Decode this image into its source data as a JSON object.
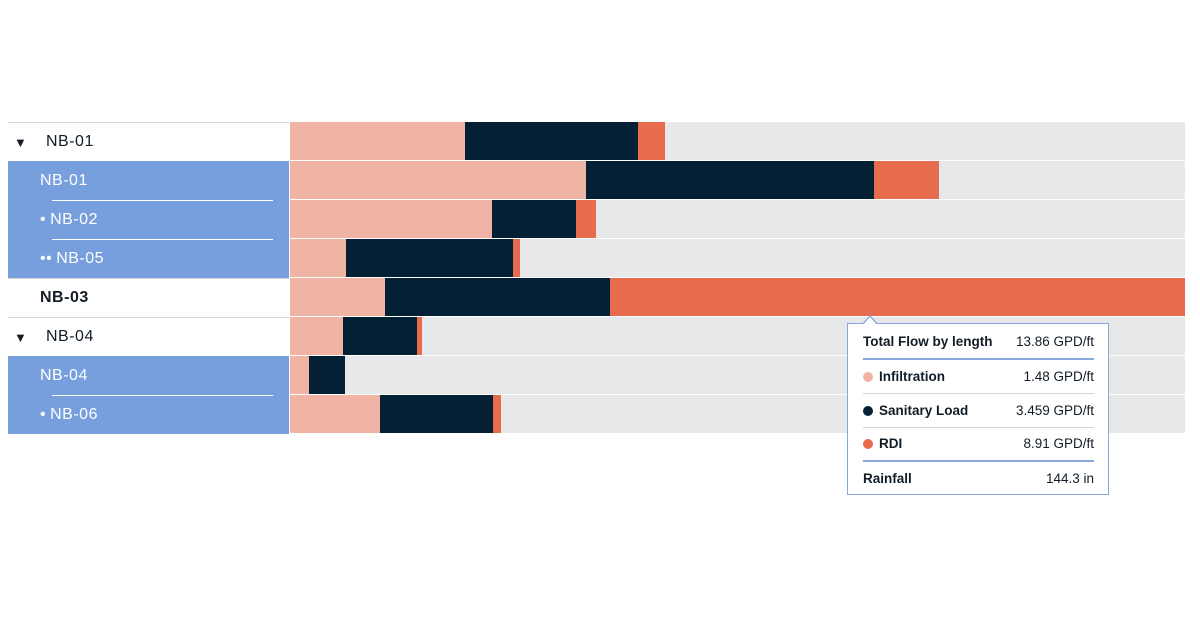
{
  "colors": {
    "infiltration": "#f1b3a4",
    "sanitary": "#032035",
    "rdi": "#e76c4d",
    "track": "#e6e8e9",
    "selected": "#779fdd"
  },
  "icons": {
    "expanded": "▼",
    "bullet": "•",
    "double_bullet": "••"
  },
  "rows": [
    {
      "label": "NB-01",
      "kind": "parent",
      "prefix": "▼"
    },
    {
      "label": "NB-01",
      "kind": "child",
      "prefix": ""
    },
    {
      "label": "NB-02",
      "kind": "child",
      "prefix": "•"
    },
    {
      "label": "NB-05",
      "kind": "child",
      "prefix": "••"
    },
    {
      "label": "NB-03",
      "kind": "parent-bold",
      "prefix": ""
    },
    {
      "label": "NB-04",
      "kind": "parent",
      "prefix": "▼"
    },
    {
      "label": "NB-04",
      "kind": "child",
      "prefix": ""
    },
    {
      "label": "NB-06",
      "kind": "child",
      "prefix": "•"
    }
  ],
  "chart_data": {
    "type": "bar",
    "orientation": "horizontal",
    "stacked": true,
    "categories": [
      "NB-01",
      "NB-01",
      "NB-02",
      "NB-05",
      "NB-03",
      "NB-04",
      "NB-04",
      "NB-06"
    ],
    "series": [
      {
        "name": "Infiltration",
        "color": "#f1b3a4",
        "values": [
          0.195,
          0.331,
          0.226,
          0.063,
          0.106,
          0.059,
          0.021,
          0.1
        ]
      },
      {
        "name": "Sanitary Load",
        "color": "#032035",
        "values": [
          0.194,
          0.322,
          0.094,
          0.186,
          0.251,
          0.083,
          0.041,
          0.127
        ]
      },
      {
        "name": "RDI",
        "color": "#e76c4d",
        "values": [
          0.03,
          0.072,
          0.022,
          0.008,
          0.643,
          0.005,
          0,
          0.009
        ]
      }
    ],
    "xlim": [
      0,
      1
    ],
    "grid": false
  },
  "tooltip": {
    "title": "Total Flow by length",
    "title_value": "13.86 GPD/ft",
    "items": [
      {
        "name": "Infiltration",
        "value": "1.48 GPD/ft",
        "color": "#f1b3a4"
      },
      {
        "name": "Sanitary Load",
        "value": "3.459 GPD/ft",
        "color": "#032035"
      },
      {
        "name": "RDI",
        "value": "8.91 GPD/ft",
        "color": "#e76c4d"
      }
    ],
    "footer_label": "Rainfall",
    "footer_value": "144.3 in"
  }
}
